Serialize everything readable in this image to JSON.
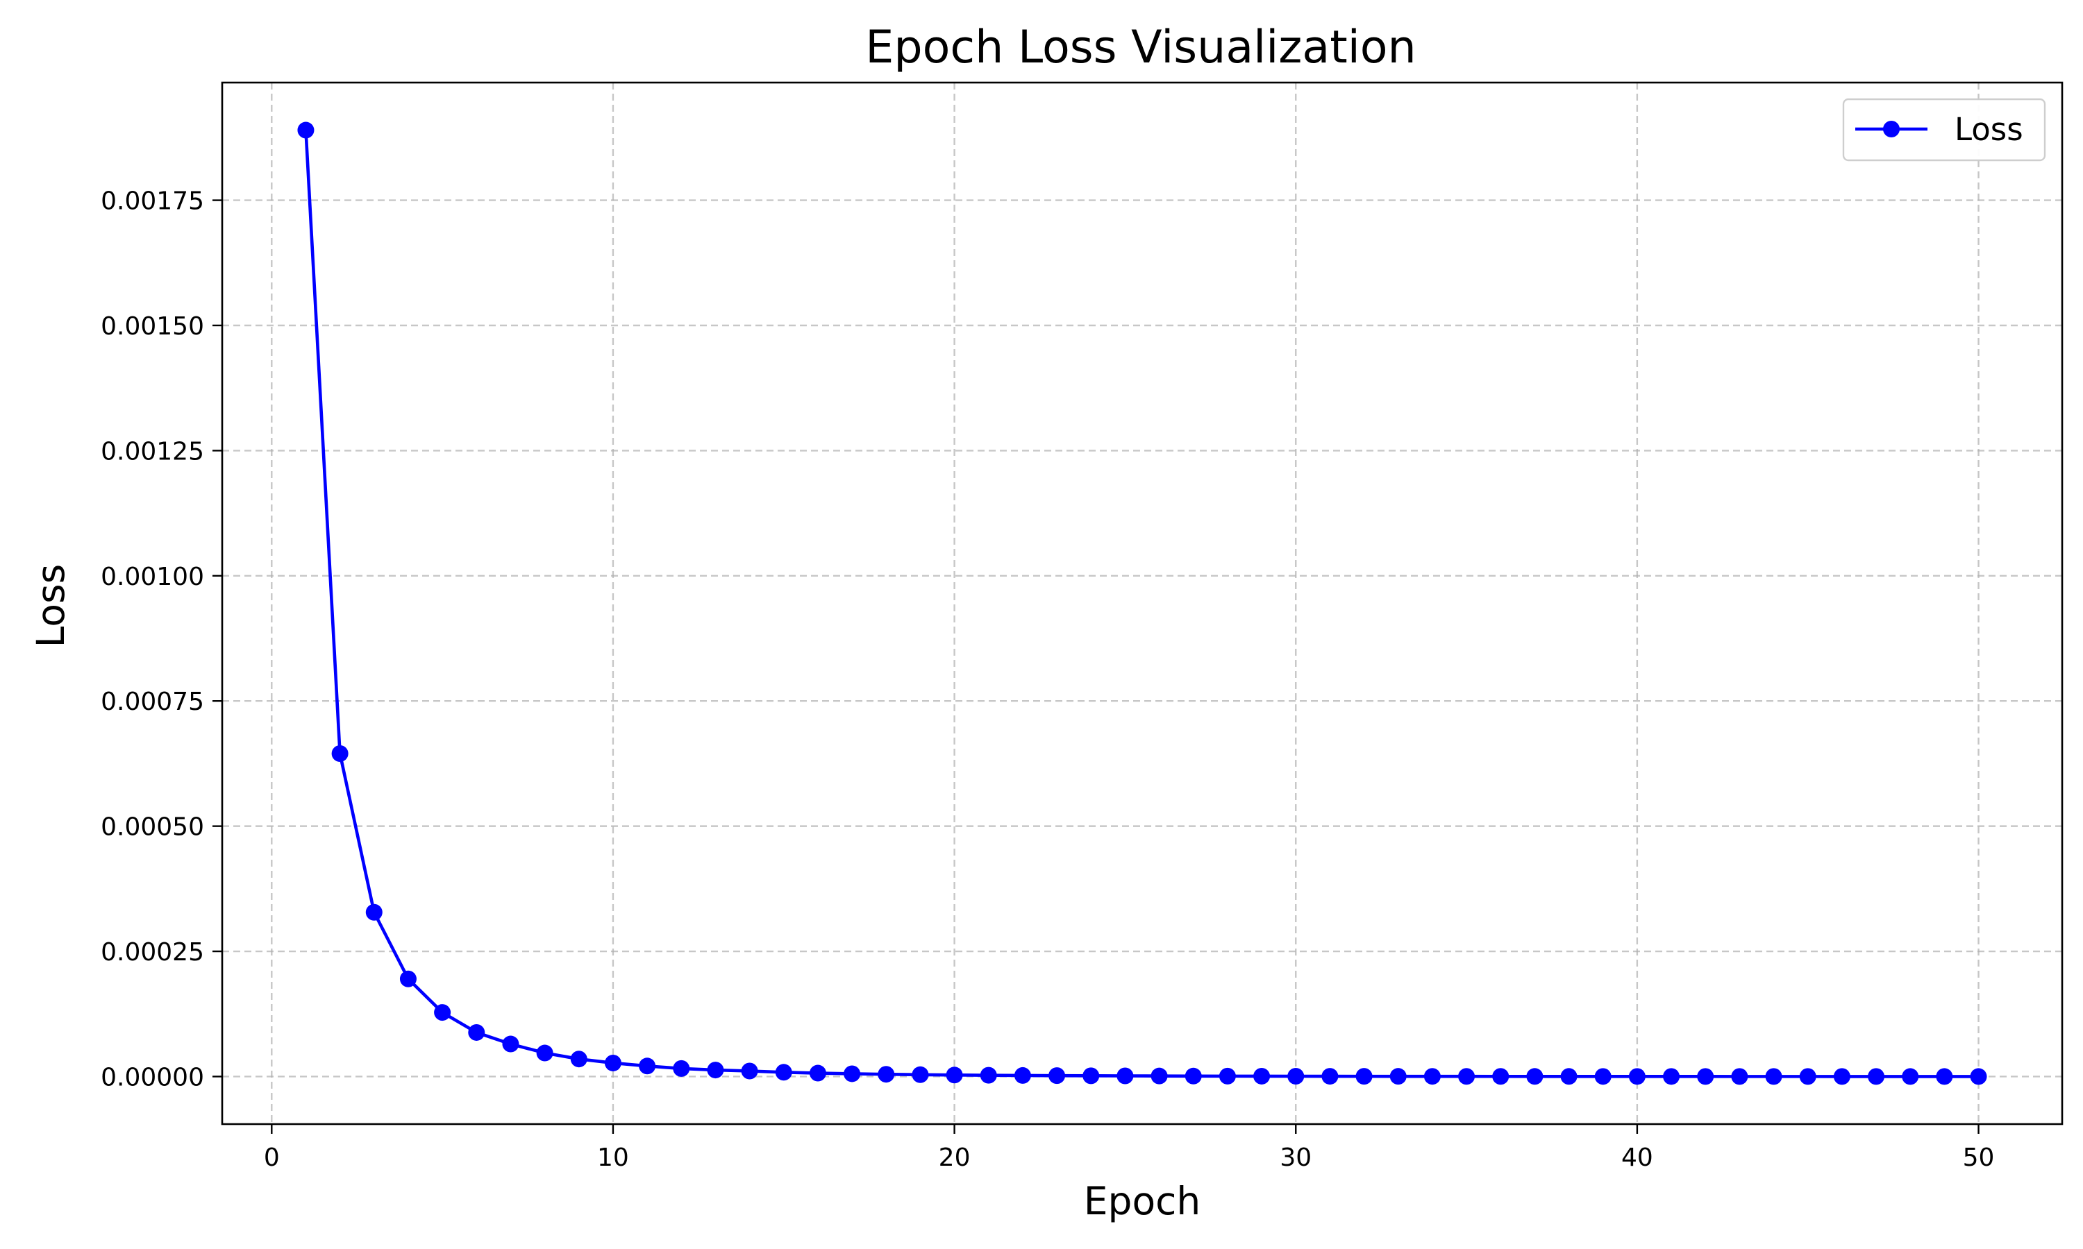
{
  "chart_data": {
    "type": "line",
    "title": "Epoch Loss Visualization",
    "xlabel": "Epoch",
    "ylabel": "Loss",
    "xlim": [
      -1.45,
      52.45
    ],
    "ylim": [
      -9.5e-05,
      0.001985
    ],
    "xticks": [
      0,
      10,
      20,
      30,
      40,
      50
    ],
    "xtick_labels": [
      "0",
      "10",
      "20",
      "30",
      "40",
      "50"
    ],
    "yticks": [
      0,
      0.00025,
      0.0005,
      0.00075,
      0.001,
      0.00125,
      0.0015,
      0.00175
    ],
    "ytick_labels": [
      "0.00000",
      "0.00025",
      "0.00050",
      "0.00075",
      "0.00100",
      "0.00125",
      "0.00150",
      "0.00175"
    ],
    "grid": true,
    "legend": {
      "placement": "top-right",
      "entries": [
        "Loss"
      ]
    },
    "series": [
      {
        "name": "Loss",
        "color": "#0000ff",
        "marker": "circle",
        "x": [
          1,
          2,
          3,
          4,
          5,
          6,
          7,
          8,
          9,
          10,
          11,
          12,
          13,
          14,
          15,
          16,
          17,
          18,
          19,
          20,
          21,
          22,
          23,
          24,
          25,
          26,
          27,
          28,
          29,
          30,
          31,
          32,
          33,
          34,
          35,
          36,
          37,
          38,
          39,
          40,
          41,
          42,
          43,
          44,
          45,
          46,
          47,
          48,
          49,
          50
        ],
        "values": [
          0.00189,
          0.000645,
          0.000328,
          0.000195,
          0.000128,
          8.8e-05,
          6.5e-05,
          4.7e-05,
          3.5e-05,
          2.7e-05,
          2.1e-05,
          1.6e-05,
          1.3e-05,
          1.1e-05,
          8.5e-06,
          6.8e-06,
          5.5e-06,
          4.5e-06,
          3.7e-06,
          3e-06,
          2.5e-06,
          2.1e-06,
          1.8e-06,
          1.5e-06,
          1.3e-06,
          1.1e-06,
          9e-07,
          8e-07,
          7e-07,
          6e-07,
          5e-07,
          4.5e-07,
          4e-07,
          3.5e-07,
          3e-07,
          2.6e-07,
          2.3e-07,
          2e-07,
          1.8e-07,
          1.6e-07,
          1.4e-07,
          1.2e-07,
          1.1e-07,
          1e-07,
          9e-08,
          8e-08,
          7e-08,
          6e-08,
          5e-08,
          4e-08
        ]
      }
    ]
  }
}
